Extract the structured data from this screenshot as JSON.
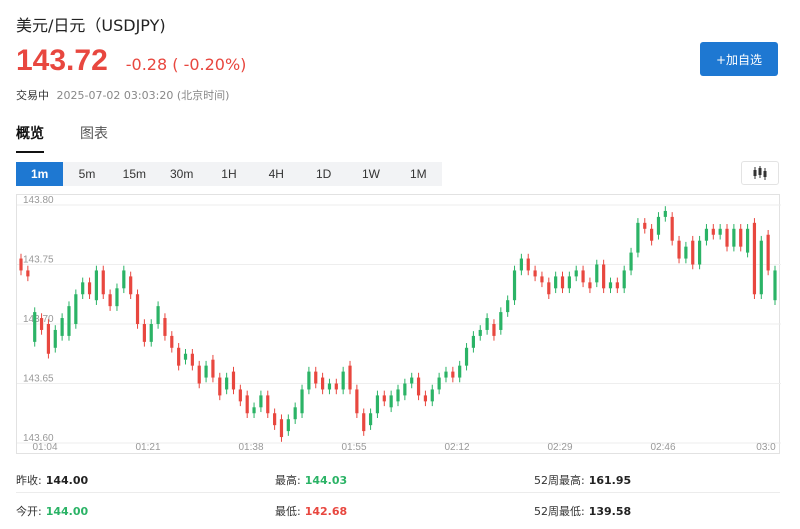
{
  "header": {
    "title": "美元/日元（USDJPY)",
    "price": "143.72",
    "change": "-0.28 ( -0.20%)",
    "trade_status": "交易中",
    "timestamp": "2025-07-02 03:03:20 (北京时间)"
  },
  "add_watch_label": "+加自选",
  "tabs": [
    {
      "label": "概览",
      "active": true
    },
    {
      "label": "图表",
      "active": false
    }
  ],
  "periods": [
    {
      "label": "1m",
      "active": true
    },
    {
      "label": "5m",
      "active": false
    },
    {
      "label": "15m",
      "active": false
    },
    {
      "label": "30m",
      "active": false
    },
    {
      "label": "1H",
      "active": false
    },
    {
      "label": "4H",
      "active": false
    },
    {
      "label": "1D",
      "active": false
    },
    {
      "label": "1W",
      "active": false
    },
    {
      "label": "1M",
      "active": false
    }
  ],
  "chart_type_icon": "candlestick-icon",
  "colors": {
    "up": "#2bb366",
    "down": "#e8473f",
    "accent": "#1e78d2"
  },
  "chart_data": {
    "type": "candlestick",
    "y_ticks": [
      "143.80",
      "143.75",
      "143.70",
      "143.65",
      "143.60"
    ],
    "ylim": [
      143.6,
      143.8
    ],
    "x_ticks": [
      "01:04",
      "01:21",
      "01:38",
      "01:55",
      "02:12",
      "02:29",
      "02:46",
      "03:0"
    ],
    "grid": true,
    "series": [
      {
        "o": 143.755,
        "c": 143.745
      },
      {
        "o": 143.745,
        "c": 143.74
      },
      {
        "o": 143.685,
        "c": 143.71
      },
      {
        "o": 143.705,
        "c": 143.695
      },
      {
        "o": 143.7,
        "c": 143.675
      },
      {
        "o": 143.68,
        "c": 143.695
      },
      {
        "o": 143.69,
        "c": 143.705
      },
      {
        "o": 143.69,
        "c": 143.715
      },
      {
        "o": 143.7,
        "c": 143.725
      },
      {
        "o": 143.725,
        "c": 143.735
      },
      {
        "o": 143.735,
        "c": 143.725
      },
      {
        "o": 143.72,
        "c": 143.745
      },
      {
        "o": 143.745,
        "c": 143.725
      },
      {
        "o": 143.725,
        "c": 143.715
      },
      {
        "o": 143.715,
        "c": 143.73
      },
      {
        "o": 143.73,
        "c": 143.745
      },
      {
        "o": 143.74,
        "c": 143.725
      },
      {
        "o": 143.725,
        "c": 143.7
      },
      {
        "o": 143.7,
        "c": 143.685
      },
      {
        "o": 143.685,
        "c": 143.7
      },
      {
        "o": 143.7,
        "c": 143.715
      },
      {
        "o": 143.705,
        "c": 143.69
      },
      {
        "o": 143.69,
        "c": 143.68
      },
      {
        "o": 143.68,
        "c": 143.665
      },
      {
        "o": 143.67,
        "c": 143.675
      },
      {
        "o": 143.675,
        "c": 143.665
      },
      {
        "o": 143.665,
        "c": 143.65
      },
      {
        "o": 143.655,
        "c": 143.665
      },
      {
        "o": 143.67,
        "c": 143.655
      },
      {
        "o": 143.655,
        "c": 143.64
      },
      {
        "o": 143.645,
        "c": 143.655
      },
      {
        "o": 143.66,
        "c": 143.645
      },
      {
        "o": 143.645,
        "c": 143.635
      },
      {
        "o": 143.64,
        "c": 143.625
      },
      {
        "o": 143.625,
        "c": 143.63
      },
      {
        "o": 143.63,
        "c": 143.64
      },
      {
        "o": 143.64,
        "c": 143.625
      },
      {
        "o": 143.625,
        "c": 143.615
      },
      {
        "o": 143.62,
        "c": 143.605
      },
      {
        "o": 143.61,
        "c": 143.62
      },
      {
        "o": 143.62,
        "c": 143.63
      },
      {
        "o": 143.625,
        "c": 143.645
      },
      {
        "o": 143.645,
        "c": 143.66
      },
      {
        "o": 143.66,
        "c": 143.65
      },
      {
        "o": 143.655,
        "c": 143.645
      },
      {
        "o": 143.645,
        "c": 143.65
      },
      {
        "o": 143.65,
        "c": 143.645
      },
      {
        "o": 143.645,
        "c": 143.66
      },
      {
        "o": 143.665,
        "c": 143.645
      },
      {
        "o": 143.645,
        "c": 143.625
      },
      {
        "o": 143.625,
        "c": 143.61
      },
      {
        "o": 143.615,
        "c": 143.625
      },
      {
        "o": 143.625,
        "c": 143.64
      },
      {
        "o": 143.64,
        "c": 143.635
      },
      {
        "o": 143.63,
        "c": 143.64
      },
      {
        "o": 143.635,
        "c": 143.645
      },
      {
        "o": 143.64,
        "c": 143.65
      },
      {
        "o": 143.65,
        "c": 143.655
      },
      {
        "o": 143.655,
        "c": 143.64
      },
      {
        "o": 143.64,
        "c": 143.635
      },
      {
        "o": 143.635,
        "c": 143.645
      },
      {
        "o": 143.645,
        "c": 143.655
      },
      {
        "o": 143.655,
        "c": 143.66
      },
      {
        "o": 143.66,
        "c": 143.655
      },
      {
        "o": 143.655,
        "c": 143.665
      },
      {
        "o": 143.665,
        "c": 143.68
      },
      {
        "o": 143.68,
        "c": 143.69
      },
      {
        "o": 143.69,
        "c": 143.695
      },
      {
        "o": 143.695,
        "c": 143.705
      },
      {
        "o": 143.7,
        "c": 143.69
      },
      {
        "o": 143.695,
        "c": 143.71
      },
      {
        "o": 143.71,
        "c": 143.72
      },
      {
        "o": 143.72,
        "c": 143.745
      },
      {
        "o": 143.745,
        "c": 143.755
      },
      {
        "o": 143.755,
        "c": 143.745
      },
      {
        "o": 143.745,
        "c": 143.74
      },
      {
        "o": 143.74,
        "c": 143.735
      },
      {
        "o": 143.735,
        "c": 143.725
      },
      {
        "o": 143.73,
        "c": 143.74
      },
      {
        "o": 143.74,
        "c": 143.73
      },
      {
        "o": 143.73,
        "c": 143.74
      },
      {
        "o": 143.74,
        "c": 143.745
      },
      {
        "o": 143.745,
        "c": 143.735
      },
      {
        "o": 143.735,
        "c": 143.73
      },
      {
        "o": 143.735,
        "c": 143.75
      },
      {
        "o": 143.75,
        "c": 143.73
      },
      {
        "o": 143.73,
        "c": 143.735
      },
      {
        "o": 143.735,
        "c": 143.73
      },
      {
        "o": 143.73,
        "c": 143.745
      },
      {
        "o": 143.745,
        "c": 143.76
      },
      {
        "o": 143.76,
        "c": 143.785
      },
      {
        "o": 143.785,
        "c": 143.78
      },
      {
        "o": 143.78,
        "c": 143.77
      },
      {
        "o": 143.775,
        "c": 143.79
      },
      {
        "o": 143.79,
        "c": 143.795
      },
      {
        "o": 143.79,
        "c": 143.77
      },
      {
        "o": 143.77,
        "c": 143.755
      },
      {
        "o": 143.755,
        "c": 143.765
      },
      {
        "o": 143.77,
        "c": 143.75
      },
      {
        "o": 143.75,
        "c": 143.77
      },
      {
        "o": 143.77,
        "c": 143.78
      },
      {
        "o": 143.78,
        "c": 143.775
      },
      {
        "o": 143.775,
        "c": 143.78
      },
      {
        "o": 143.78,
        "c": 143.765
      },
      {
        "o": 143.765,
        "c": 143.78
      },
      {
        "o": 143.78,
        "c": 143.765
      },
      {
        "o": 143.76,
        "c": 143.78
      },
      {
        "o": 143.785,
        "c": 143.725
      },
      {
        "o": 143.725,
        "c": 143.77
      },
      {
        "o": 143.775,
        "c": 143.745
      },
      {
        "o": 143.72,
        "c": 143.745
      }
    ]
  },
  "stats": [
    {
      "label": "昨收:",
      "value": "144.00",
      "color": "#222222"
    },
    {
      "label": "最高:",
      "value": "144.03",
      "color": "#2bb366"
    },
    {
      "label": "52周最高:",
      "value": "161.95",
      "color": "#222222"
    },
    {
      "label": "今开:",
      "value": "144.00",
      "color": "#2bb366"
    },
    {
      "label": "最低:",
      "value": "142.68",
      "color": "#e8473f"
    },
    {
      "label": "52周最低:",
      "value": "139.58",
      "color": "#222222"
    }
  ]
}
